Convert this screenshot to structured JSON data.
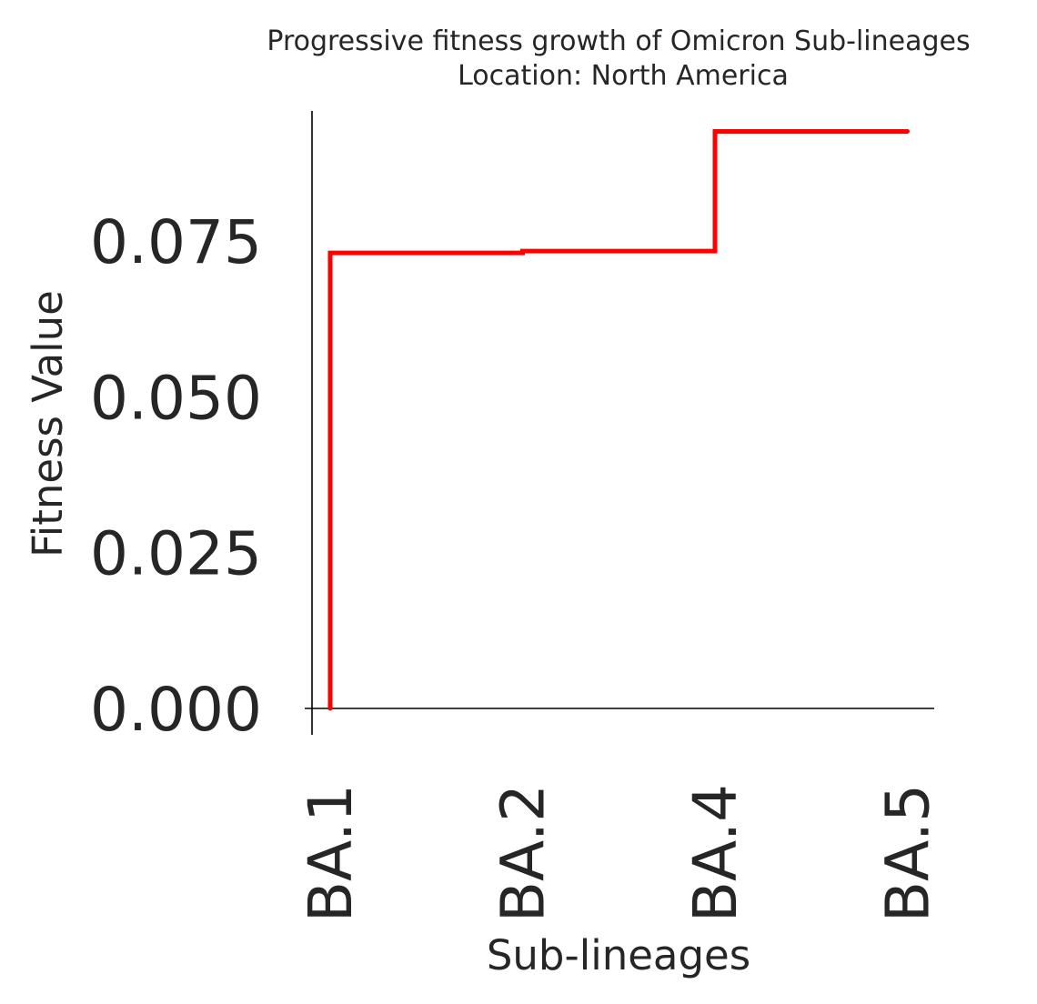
{
  "chart_data": {
    "type": "line",
    "drawstyle": "steps-pre",
    "title_lines": [
      "Progressive fitness growth of Omicron Sub-lineages",
      "Location: North America"
    ],
    "xlabel": "Sub-lineages",
    "ylabel": "Fitness Value",
    "categories": [
      "BA.1",
      "BA.2",
      "BA.4",
      "BA.5"
    ],
    "x_tick_labels": [
      "BA.1",
      "BA.2",
      "BA.4",
      "BA.5"
    ],
    "y_ticks": [
      0.0,
      0.025,
      0.05,
      0.075
    ],
    "y_tick_labels": [
      "0.000",
      "0.025",
      "0.050",
      "0.075"
    ],
    "ylim": [
      -0.004,
      0.0965
    ],
    "series": [
      {
        "color": "#ff0000",
        "points": [
          {
            "x": "BA.1",
            "y": 0.0
          },
          {
            "x": "BA.1",
            "y": 0.0731
          },
          {
            "x": "BA.2",
            "y": 0.0731
          },
          {
            "x": "BA.2",
            "y": 0.0734
          },
          {
            "x": "BA.4",
            "y": 0.0734
          },
          {
            "x": "BA.4",
            "y": 0.0926
          },
          {
            "x": "BA.5",
            "y": 0.0926
          }
        ]
      }
    ],
    "grid": false
  }
}
